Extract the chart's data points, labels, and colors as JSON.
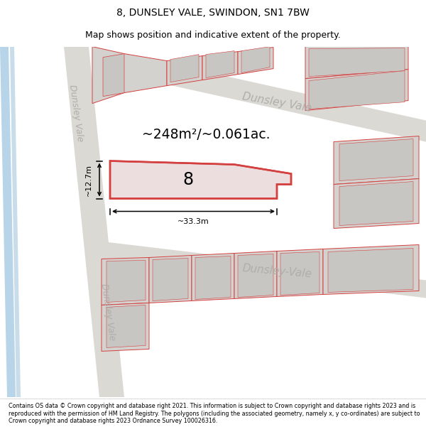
{
  "title": "8, DUNSLEY VALE, SWINDON, SN1 7BW",
  "subtitle": "Map shows position and indicative extent of the property.",
  "footer": "Contains OS data © Crown copyright and database right 2021. This information is subject to Crown copyright and database rights 2023 and is reproduced with the permission of HM Land Registry. The polygons (including the associated geometry, namely x, y co-ordinates) are subject to Crown copyright and database rights 2023 Ordnance Survey 100026316.",
  "area_text": "~248m²/~0.061ac.",
  "number_label": "8",
  "dim_width": "~33.3m",
  "dim_height": "~12.7m",
  "street_label_top": "Dunsley Vale",
  "street_label_left_top": "Dunsley Vale",
  "street_label_bottom": "Dunsley-Vale",
  "street_label_left_bottom": "Dunsley Vale",
  "bg_color": "#f2f0ed",
  "road_color": "#e8e6e1",
  "building_fill": "#d4d2ce",
  "building_inner_fill": "#c8c6c2",
  "plot_edge_color": "#d44040",
  "plot_fill": "#ecdede",
  "road_stripe_color": "#b8d4e8",
  "street_label_color": "#b0aeaa",
  "title_fontsize": 10,
  "subtitle_fontsize": 9
}
